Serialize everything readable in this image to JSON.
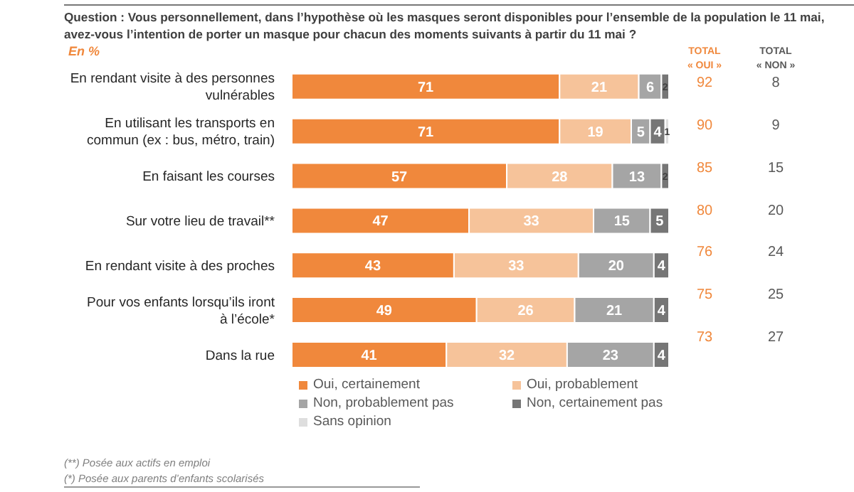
{
  "chart_data": {
    "type": "bar",
    "orientation": "horizontal",
    "stacked": true,
    "title": "Question : Vous personnellement, dans l’hypothèse où les masques seront disponibles pour l’ensemble de la population le 11 mai, avez-vous l’intention de porter un masque pour chacun des moments suivants à partir du 11 mai ?",
    "subtitle": "En %",
    "categories": [
      "En rendant visite à des personnes vulnérables",
      "En utilisant les transports en commun (ex : bus, métro, train)",
      "En faisant les courses",
      "Sur votre lieu de travail**",
      "En rendant visite à des proches",
      "Pour vos enfants lorsqu’ils iront à l’école*",
      "Dans la rue"
    ],
    "series": [
      {
        "name": "Oui, certainement",
        "color": "#f0883c",
        "values": [
          71,
          71,
          57,
          47,
          43,
          49,
          41
        ]
      },
      {
        "name": "Oui, probablement",
        "color": "#f6c39a",
        "values": [
          21,
          19,
          28,
          33,
          33,
          26,
          32
        ]
      },
      {
        "name": "Non, probablement pas",
        "color": "#a5a5a5",
        "values": [
          6,
          5,
          13,
          15,
          20,
          21,
          23
        ]
      },
      {
        "name": "Non, certainement pas",
        "color": "#767676",
        "values": [
          2,
          4,
          2,
          5,
          4,
          4,
          4
        ]
      },
      {
        "name": "Sans opinion",
        "color": "#dedede",
        "values": [
          null,
          1,
          null,
          null,
          null,
          null,
          null
        ]
      }
    ],
    "data_labels": true,
    "xlim": [
      0,
      100
    ],
    "tick_labels": "y",
    "grid": false,
    "legend": "bottom",
    "annotations": [
      "TOTAL « OUI »",
      "TOTAL « NON »",
      "92",
      "90",
      "85",
      "80",
      "76",
      "75",
      "73",
      "8",
      "9",
      "15",
      "20",
      "24",
      "25",
      "27",
      "(**) Posée aux actifs en emploi",
      "(*) Posée aux parents d’enfants scolarisés"
    ]
  }
}
